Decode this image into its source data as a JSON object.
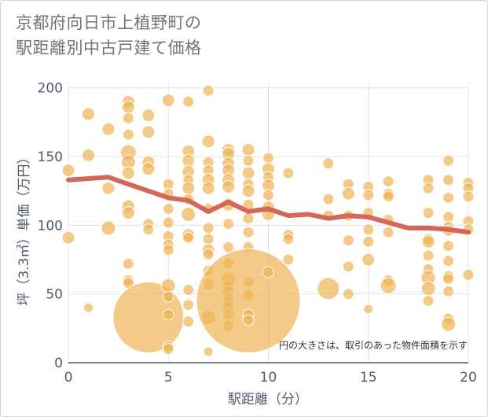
{
  "title_lines": [
    "京都府向日市上植野町の",
    "駅距離別中古戸建て価格"
  ],
  "chart_data": {
    "type": "scatter",
    "title": "京都府向日市上植野町の駅距離別中古戸建て価格",
    "xlabel": "駅距離（分）",
    "ylabel": "坪（3.3㎡）単価（万円）",
    "xlim": [
      0,
      20
    ],
    "ylim": [
      0,
      205
    ],
    "xticks": [
      0,
      5,
      10,
      15,
      20
    ],
    "yticks": [
      0,
      50,
      100,
      150,
      200
    ],
    "note": "円の大きさは、取引のあった物件面積を示す",
    "colors": {
      "points": "#f0b355",
      "trend": "#d2675a",
      "grid": "#dde3ec",
      "axis": "#4d5a6b"
    },
    "points": [
      {
        "x": 0,
        "y": 140,
        "s": 8
      },
      {
        "x": 0,
        "y": 91,
        "s": 8
      },
      {
        "x": 1,
        "y": 181,
        "s": 8
      },
      {
        "x": 1,
        "y": 151,
        "s": 8
      },
      {
        "x": 1,
        "y": 40,
        "s": 6
      },
      {
        "x": 2,
        "y": 170,
        "s": 8
      },
      {
        "x": 2,
        "y": 127,
        "s": 8
      },
      {
        "x": 2,
        "y": 98,
        "s": 9
      },
      {
        "x": 3,
        "y": 190,
        "s": 8
      },
      {
        "x": 3,
        "y": 186,
        "s": 8
      },
      {
        "x": 3,
        "y": 178,
        "s": 7
      },
      {
        "x": 3,
        "y": 166,
        "s": 7
      },
      {
        "x": 3,
        "y": 153,
        "s": 10
      },
      {
        "x": 3,
        "y": 146,
        "s": 9
      },
      {
        "x": 3,
        "y": 138,
        "s": 8
      },
      {
        "x": 3,
        "y": 114,
        "s": 8
      },
      {
        "x": 3,
        "y": 109,
        "s": 8
      },
      {
        "x": 3,
        "y": 72,
        "s": 7
      },
      {
        "x": 3,
        "y": 60,
        "s": 7
      },
      {
        "x": 3,
        "y": 58,
        "s": 7
      },
      {
        "x": 4,
        "y": 180,
        "s": 8
      },
      {
        "x": 4,
        "y": 168,
        "s": 8
      },
      {
        "x": 4,
        "y": 146,
        "s": 8
      },
      {
        "x": 4,
        "y": 141,
        "s": 8
      },
      {
        "x": 4,
        "y": 101,
        "s": 7
      },
      {
        "x": 4,
        "y": 97,
        "s": 7
      },
      {
        "x": 4,
        "y": 33,
        "s": 45
      },
      {
        "x": 5,
        "y": 191,
        "s": 8
      },
      {
        "x": 5,
        "y": 130,
        "s": 7
      },
      {
        "x": 5,
        "y": 123,
        "s": 7
      },
      {
        "x": 5,
        "y": 112,
        "s": 7
      },
      {
        "x": 5,
        "y": 102,
        "s": 7
      },
      {
        "x": 5,
        "y": 92,
        "s": 7
      },
      {
        "x": 5,
        "y": 86,
        "s": 7
      },
      {
        "x": 5,
        "y": 82,
        "s": 7
      },
      {
        "x": 5,
        "y": 56,
        "s": 9
      },
      {
        "x": 5,
        "y": 48,
        "s": 7
      },
      {
        "x": 5,
        "y": 35,
        "s": 7
      },
      {
        "x": 5,
        "y": 12,
        "s": 7
      },
      {
        "x": 5,
        "y": 10,
        "s": 7
      },
      {
        "x": 6,
        "y": 190,
        "s": 7
      },
      {
        "x": 6,
        "y": 154,
        "s": 8
      },
      {
        "x": 6,
        "y": 147,
        "s": 8
      },
      {
        "x": 6,
        "y": 139,
        "s": 8
      },
      {
        "x": 6,
        "y": 133,
        "s": 7
      },
      {
        "x": 6,
        "y": 127,
        "s": 8
      },
      {
        "x": 6,
        "y": 119,
        "s": 7
      },
      {
        "x": 6,
        "y": 108,
        "s": 9
      },
      {
        "x": 6,
        "y": 93,
        "s": 8
      },
      {
        "x": 6,
        "y": 91,
        "s": 7
      },
      {
        "x": 6,
        "y": 53,
        "s": 7
      },
      {
        "x": 6,
        "y": 42,
        "s": 7
      },
      {
        "x": 6,
        "y": 30,
        "s": 7
      },
      {
        "x": 7,
        "y": 198,
        "s": 7
      },
      {
        "x": 7,
        "y": 161,
        "s": 8
      },
      {
        "x": 7,
        "y": 146,
        "s": 7
      },
      {
        "x": 7,
        "y": 140,
        "s": 7
      },
      {
        "x": 7,
        "y": 133,
        "s": 8
      },
      {
        "x": 7,
        "y": 127,
        "s": 8
      },
      {
        "x": 7,
        "y": 112,
        "s": 7
      },
      {
        "x": 7,
        "y": 98,
        "s": 7
      },
      {
        "x": 7,
        "y": 90,
        "s": 7
      },
      {
        "x": 7,
        "y": 82,
        "s": 8
      },
      {
        "x": 7,
        "y": 79,
        "s": 7
      },
      {
        "x": 7,
        "y": 67,
        "s": 7
      },
      {
        "x": 7,
        "y": 57,
        "s": 7
      },
      {
        "x": 7,
        "y": 33,
        "s": 9
      },
      {
        "x": 7,
        "y": 8,
        "s": 6
      },
      {
        "x": 8,
        "y": 155,
        "s": 8
      },
      {
        "x": 8,
        "y": 152,
        "s": 8
      },
      {
        "x": 8,
        "y": 145,
        "s": 8
      },
      {
        "x": 8,
        "y": 140,
        "s": 8
      },
      {
        "x": 8,
        "y": 133,
        "s": 8
      },
      {
        "x": 8,
        "y": 128,
        "s": 8
      },
      {
        "x": 8,
        "y": 115,
        "s": 8
      },
      {
        "x": 8,
        "y": 101,
        "s": 7
      },
      {
        "x": 8,
        "y": 84,
        "s": 7
      },
      {
        "x": 8,
        "y": 72,
        "s": 7
      },
      {
        "x": 8,
        "y": 61,
        "s": 9
      },
      {
        "x": 8,
        "y": 56,
        "s": 7
      },
      {
        "x": 8,
        "y": 52,
        "s": 7
      },
      {
        "x": 8,
        "y": 46,
        "s": 7
      },
      {
        "x": 8,
        "y": 41,
        "s": 7
      },
      {
        "x": 8,
        "y": 35,
        "s": 7
      },
      {
        "x": 8,
        "y": 27,
        "s": 7
      },
      {
        "x": 9,
        "y": 155,
        "s": 8
      },
      {
        "x": 9,
        "y": 147,
        "s": 7
      },
      {
        "x": 9,
        "y": 138,
        "s": 8
      },
      {
        "x": 9,
        "y": 130,
        "s": 7
      },
      {
        "x": 9,
        "y": 125,
        "s": 8
      },
      {
        "x": 9,
        "y": 115,
        "s": 7
      },
      {
        "x": 9,
        "y": 105,
        "s": 7
      },
      {
        "x": 9,
        "y": 95,
        "s": 7
      },
      {
        "x": 9,
        "y": 84,
        "s": 7
      },
      {
        "x": 9,
        "y": 59,
        "s": 7
      },
      {
        "x": 9,
        "y": 49,
        "s": 7
      },
      {
        "x": 9,
        "y": 45,
        "s": 66
      },
      {
        "x": 9,
        "y": 35,
        "s": 7
      },
      {
        "x": 9,
        "y": 31,
        "s": 7
      },
      {
        "x": 10,
        "y": 149,
        "s": 7
      },
      {
        "x": 10,
        "y": 141,
        "s": 8
      },
      {
        "x": 10,
        "y": 135,
        "s": 7
      },
      {
        "x": 10,
        "y": 129,
        "s": 8
      },
      {
        "x": 10,
        "y": 122,
        "s": 7
      },
      {
        "x": 10,
        "y": 113,
        "s": 8
      },
      {
        "x": 10,
        "y": 108,
        "s": 8
      },
      {
        "x": 10,
        "y": 66,
        "s": 7
      },
      {
        "x": 11,
        "y": 138,
        "s": 7
      },
      {
        "x": 11,
        "y": 93,
        "s": 7
      },
      {
        "x": 11,
        "y": 90,
        "s": 7
      },
      {
        "x": 11,
        "y": 75,
        "s": 7
      },
      {
        "x": 13,
        "y": 145,
        "s": 7
      },
      {
        "x": 13,
        "y": 119,
        "s": 7
      },
      {
        "x": 13,
        "y": 107,
        "s": 7
      },
      {
        "x": 13,
        "y": 54,
        "s": 14
      },
      {
        "x": 14,
        "y": 130,
        "s": 7
      },
      {
        "x": 14,
        "y": 123,
        "s": 8
      },
      {
        "x": 14,
        "y": 107,
        "s": 7
      },
      {
        "x": 14,
        "y": 89,
        "s": 7
      },
      {
        "x": 14,
        "y": 70,
        "s": 7
      },
      {
        "x": 14,
        "y": 50,
        "s": 7
      },
      {
        "x": 15,
        "y": 128,
        "s": 7
      },
      {
        "x": 15,
        "y": 122,
        "s": 7
      },
      {
        "x": 15,
        "y": 109,
        "s": 7
      },
      {
        "x": 15,
        "y": 97,
        "s": 7
      },
      {
        "x": 15,
        "y": 88,
        "s": 7
      },
      {
        "x": 15,
        "y": 75,
        "s": 8
      },
      {
        "x": 15,
        "y": 39,
        "s": 6
      },
      {
        "x": 16,
        "y": 132,
        "s": 7
      },
      {
        "x": 16,
        "y": 123,
        "s": 7
      },
      {
        "x": 16,
        "y": 121,
        "s": 7
      },
      {
        "x": 16,
        "y": 104,
        "s": 7
      },
      {
        "x": 16,
        "y": 95,
        "s": 7
      },
      {
        "x": 16,
        "y": 60,
        "s": 7
      },
      {
        "x": 16,
        "y": 56,
        "s": 10
      },
      {
        "x": 18,
        "y": 133,
        "s": 7
      },
      {
        "x": 18,
        "y": 127,
        "s": 7
      },
      {
        "x": 18,
        "y": 109,
        "s": 7
      },
      {
        "x": 18,
        "y": 90,
        "s": 7
      },
      {
        "x": 18,
        "y": 88,
        "s": 8
      },
      {
        "x": 18,
        "y": 78,
        "s": 7
      },
      {
        "x": 18,
        "y": 68,
        "s": 7
      },
      {
        "x": 18,
        "y": 62,
        "s": 9
      },
      {
        "x": 18,
        "y": 54,
        "s": 9
      },
      {
        "x": 18,
        "y": 45,
        "s": 7
      },
      {
        "x": 19,
        "y": 147,
        "s": 7
      },
      {
        "x": 19,
        "y": 133,
        "s": 7
      },
      {
        "x": 19,
        "y": 120,
        "s": 7
      },
      {
        "x": 19,
        "y": 106,
        "s": 7
      },
      {
        "x": 19,
        "y": 99,
        "s": 7
      },
      {
        "x": 19,
        "y": 96,
        "s": 7
      },
      {
        "x": 19,
        "y": 85,
        "s": 7
      },
      {
        "x": 19,
        "y": 74,
        "s": 7
      },
      {
        "x": 19,
        "y": 63,
        "s": 7
      },
      {
        "x": 19,
        "y": 61,
        "s": 7
      },
      {
        "x": 19,
        "y": 52,
        "s": 7
      },
      {
        "x": 19,
        "y": 32,
        "s": 7
      },
      {
        "x": 19,
        "y": 28,
        "s": 9
      },
      {
        "x": 20,
        "y": 131,
        "s": 7
      },
      {
        "x": 20,
        "y": 127,
        "s": 7
      },
      {
        "x": 20,
        "y": 121,
        "s": 7
      },
      {
        "x": 20,
        "y": 103,
        "s": 7
      },
      {
        "x": 20,
        "y": 97,
        "s": 7
      },
      {
        "x": 20,
        "y": 64,
        "s": 7
      }
    ],
    "trend": {
      "x": [
        0,
        1,
        2,
        3,
        4,
        5,
        6,
        7,
        8,
        9,
        10,
        11,
        12,
        13,
        14,
        15,
        16,
        17,
        18,
        19,
        20
      ],
      "y": [
        133,
        134,
        135,
        130,
        125,
        120,
        118,
        110,
        117,
        110,
        112,
        107,
        108,
        105,
        107,
        106,
        102,
        98,
        98,
        97,
        95
      ]
    }
  }
}
